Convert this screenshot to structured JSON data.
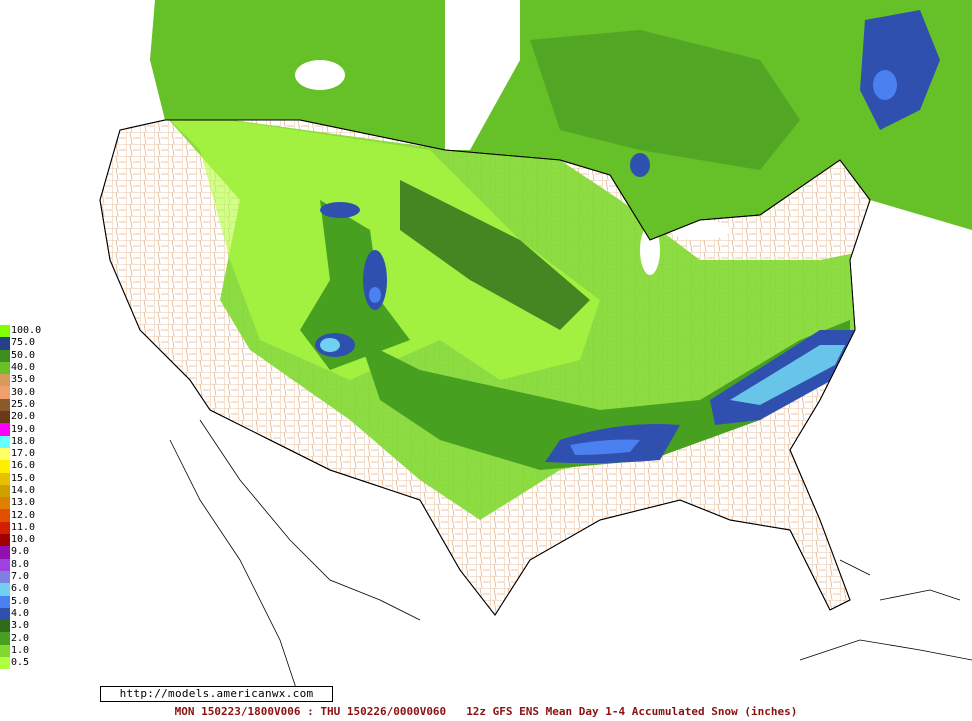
{
  "legend": {
    "items": [
      {
        "label": "100.0",
        "color": "#7fff00"
      },
      {
        "label": "75.0",
        "color": "#27408b"
      },
      {
        "label": "50.0",
        "color": "#3c8c1e"
      },
      {
        "label": "40.0",
        "color": "#66c028"
      },
      {
        "label": "35.0",
        "color": "#d89a5a"
      },
      {
        "label": "30.0",
        "color": "#f0a070"
      },
      {
        "label": "25.0",
        "color": "#8b5a2b"
      },
      {
        "label": "20.0",
        "color": "#6b3a1b"
      },
      {
        "label": "19.0",
        "color": "#ff00ff"
      },
      {
        "label": "18.0",
        "color": "#66ffff"
      },
      {
        "label": "17.0",
        "color": "#ffff66"
      },
      {
        "label": "16.0",
        "color": "#ffee00"
      },
      {
        "label": "15.0",
        "color": "#e8c000"
      },
      {
        "label": "14.0",
        "color": "#d0a000"
      },
      {
        "label": "13.0",
        "color": "#e08000"
      },
      {
        "label": "12.0",
        "color": "#e05000"
      },
      {
        "label": "11.0",
        "color": "#d02000"
      },
      {
        "label": "10.0",
        "color": "#a00000"
      },
      {
        "label": "9.0",
        "color": "#9010b0"
      },
      {
        "label": "8.0",
        "color": "#a040e0"
      },
      {
        "label": "7.0",
        "color": "#8080e0"
      },
      {
        "label": "6.0",
        "color": "#70d0f0"
      },
      {
        "label": "5.0",
        "color": "#4a80f0"
      },
      {
        "label": "4.0",
        "color": "#3050b0"
      },
      {
        "label": "3.0",
        "color": "#2f6b1a"
      },
      {
        "label": "2.0",
        "color": "#48a020"
      },
      {
        "label": "1.0",
        "color": "#80d830"
      },
      {
        "label": "0.5",
        "color": "#b0ff40"
      }
    ]
  },
  "source_url": "http://models.americanwx.com",
  "footer": {
    "valid_time": "MON 150223/1800V006 : THU 150226/0000V060",
    "description": "12z GFS ENS Mean Day 1-4 Accumulated Snow (inches)"
  }
}
